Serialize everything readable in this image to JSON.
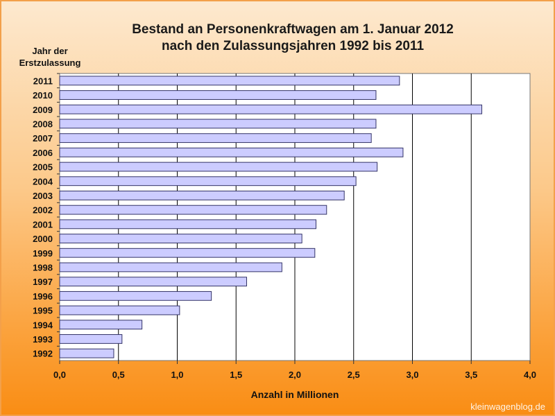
{
  "chart_data": {
    "type": "bar",
    "orientation": "horizontal",
    "title_line1": "Bestand an Personenkraftwagen am 1. Januar 2012",
    "title_line2": "nach den Zulassungsjahren 1992 bis 2011",
    "ylabel_line1": "Jahr der",
    "ylabel_line2": "Erstzulassung",
    "xlabel": "Anzahl in Millionen",
    "categories": [
      "2011",
      "2010",
      "2009",
      "2008",
      "2007",
      "2006",
      "2005",
      "2004",
      "2003",
      "2002",
      "2001",
      "2000",
      "1999",
      "1998",
      "1997",
      "1996",
      "1995",
      "1994",
      "1993",
      "1992"
    ],
    "values": [
      2.89,
      2.69,
      3.59,
      2.69,
      2.65,
      2.92,
      2.7,
      2.52,
      2.42,
      2.27,
      2.18,
      2.06,
      2.17,
      1.89,
      1.59,
      1.29,
      1.02,
      0.7,
      0.53,
      0.46
    ],
    "xlim": [
      0,
      4.0
    ],
    "xticks": [
      "0,0",
      "0,5",
      "1,0",
      "1,5",
      "2,0",
      "2,5",
      "3,0",
      "3,5",
      "4,0"
    ],
    "grid": true,
    "colors": {
      "bar": "#ccccff",
      "bar_stroke": "#333366",
      "plot_bg": "#ffffff",
      "grid": "#000000"
    }
  },
  "watermark": "kleinwagenblog.de"
}
